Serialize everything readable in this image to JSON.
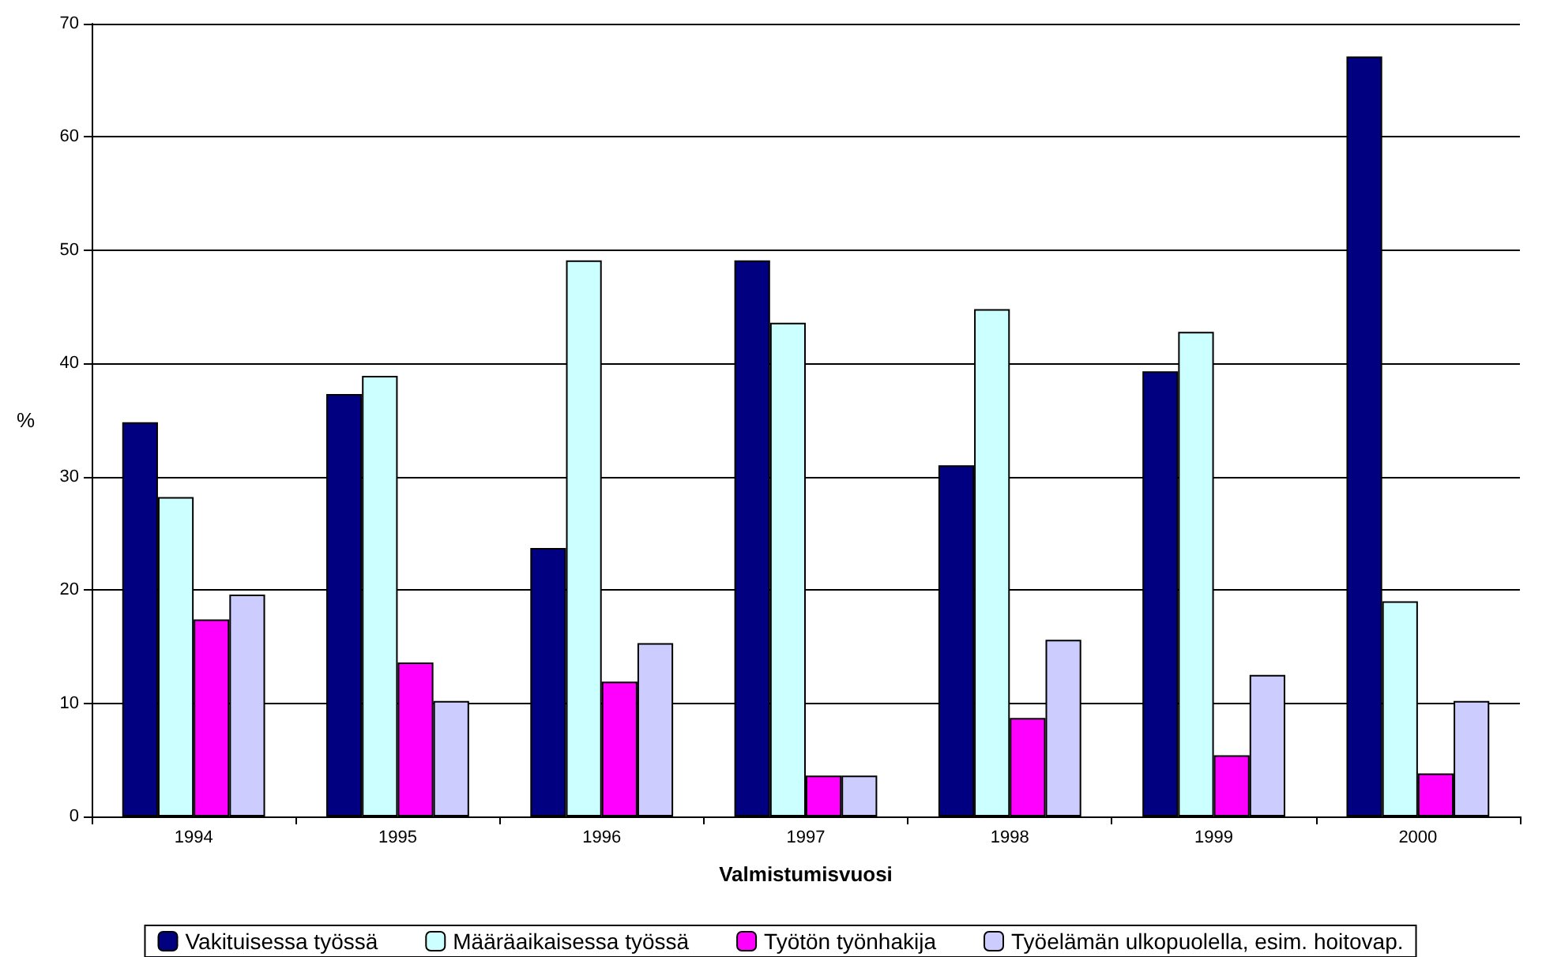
{
  "chart_data": {
    "type": "bar",
    "xlabel": "Valmistumisvuosi",
    "ylabel": "%",
    "categories": [
      "1994",
      "1995",
      "1996",
      "1997",
      "1998",
      "1999",
      "2000"
    ],
    "series": [
      {
        "name": "Vakituisessa työssä",
        "color": "#000080",
        "values": [
          34.8,
          37.3,
          23.7,
          49.1,
          31.0,
          39.3,
          67.1
        ]
      },
      {
        "name": "Määräaikaisessa työssä",
        "color": "#ccffff",
        "values": [
          28.2,
          38.9,
          49.1,
          43.6,
          44.8,
          42.8,
          19.0
        ]
      },
      {
        "name": "Työtön työnhakija",
        "color": "#ff00ff",
        "values": [
          17.4,
          13.6,
          11.9,
          3.6,
          8.7,
          5.4,
          3.8
        ]
      },
      {
        "name": "Työelämän ulkopuolella, esim. hoitovap.",
        "color": "#ccccff",
        "values": [
          19.6,
          10.2,
          15.3,
          3.6,
          15.6,
          12.5,
          10.2
        ]
      }
    ],
    "ylim": [
      0,
      70
    ],
    "yticks": [
      0,
      10,
      20,
      30,
      40,
      50,
      60,
      70
    ],
    "grid": "y",
    "legend": "bottom"
  }
}
